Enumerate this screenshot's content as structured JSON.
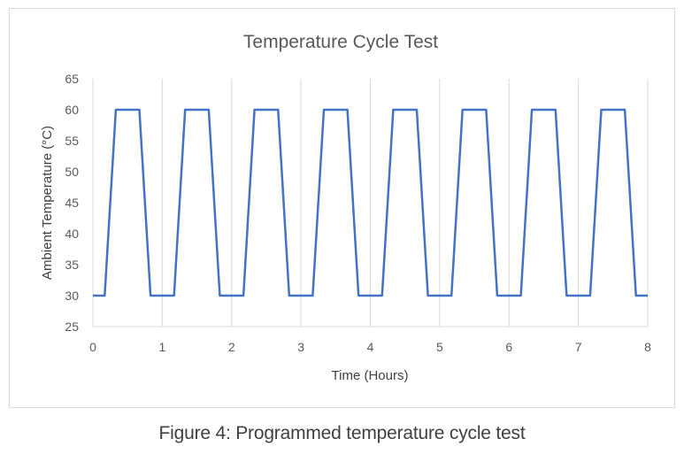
{
  "caption": "Figure 4: Programmed temperature cycle test",
  "chart_data": {
    "type": "line",
    "title": "Temperature Cycle Test",
    "xlabel": "Time (Hours)",
    "ylabel": "Ambient Temperature (°C)",
    "xlim": [
      0,
      8
    ],
    "ylim": [
      25,
      65
    ],
    "xticks": [
      "0",
      "1",
      "2",
      "3",
      "4",
      "5",
      "6",
      "7",
      "8"
    ],
    "yticks": [
      "25",
      "30",
      "35",
      "40",
      "45",
      "50",
      "55",
      "60",
      "65"
    ],
    "grid": "vertical",
    "series": [
      {
        "color": "#4472c4",
        "x": [
          0,
          0.17,
          0.33,
          0.67,
          0.83,
          1.17,
          1.33,
          1.67,
          1.83,
          2.17,
          2.33,
          2.67,
          2.83,
          3.17,
          3.33,
          3.67,
          3.83,
          4.17,
          4.33,
          4.67,
          4.83,
          5.17,
          5.33,
          5.67,
          5.83,
          6.17,
          6.33,
          6.67,
          6.83,
          7.17,
          7.33,
          7.67,
          7.83,
          8
        ],
        "y": [
          30,
          30,
          60,
          60,
          30,
          30,
          60,
          60,
          30,
          30,
          60,
          60,
          30,
          30,
          60,
          60,
          30,
          30,
          60,
          60,
          30,
          30,
          60,
          60,
          30,
          30,
          60,
          60,
          30,
          30,
          60,
          60,
          30,
          30
        ]
      }
    ]
  }
}
